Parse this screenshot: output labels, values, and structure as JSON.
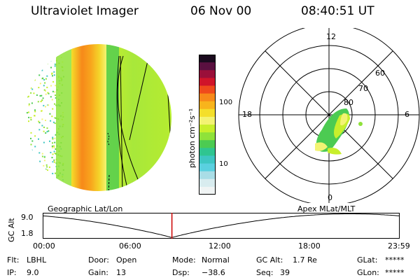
{
  "header": {
    "instrument": "Ultraviolet Imager",
    "date": "06 Nov 00",
    "time": "08:40:51 UT"
  },
  "colorbar": {
    "unit_label": "photon cm⁻²s⁻¹",
    "ticks": [
      "100",
      "10"
    ],
    "colors": [
      "#1a0a1e",
      "#5a1040",
      "#9a0f3a",
      "#d0142a",
      "#ef4a1c",
      "#f7891a",
      "#f8b41c",
      "#f4df2a",
      "#f3f373",
      "#c8ef2c",
      "#8fe23a",
      "#4ccb52",
      "#2fc590",
      "#3ec6c2",
      "#5ad0df",
      "#a9dde6",
      "#d8ecef",
      "#f0f4f4"
    ]
  },
  "polar_plot": {
    "mlt_labels": {
      "top": "12",
      "left": "18",
      "right": "6",
      "bottom": "0"
    },
    "lat_labels": [
      "60",
      "70",
      "80"
    ]
  },
  "map_labels": {
    "left": "Geographic Lat/Lon",
    "right": "Apex MLat/MLT"
  },
  "orbit_plot": {
    "axis_title": "GC Alt",
    "y_ticks": [
      "9.0",
      "1.8"
    ],
    "x_ticks": [
      "00:00",
      "06:00",
      "12:00",
      "18:00",
      "23:59"
    ],
    "current_time_hours": 8.68,
    "line_color": "#000000",
    "marker_color": "#cc0000"
  },
  "status": {
    "flt_label": "Flt:",
    "flt_value": "LBHL",
    "ip_label": "IP:",
    "ip_value": "9.0",
    "door_label": "Door:",
    "door_value": "Open",
    "gain_label": "Gain:",
    "gain_value": "13",
    "mode_label": "Mode:",
    "mode_value": "Normal",
    "dsp_label": "Dsp:",
    "dsp_value": "−38.6",
    "gcalt_label": "GC Alt:",
    "gcalt_value": "1.7 Re",
    "seq_label": "Seq:",
    "seq_value": "39",
    "glat_label": "GLat:",
    "glat_value": "*****",
    "glon_label": "GLon:",
    "glon_value": "*****"
  }
}
